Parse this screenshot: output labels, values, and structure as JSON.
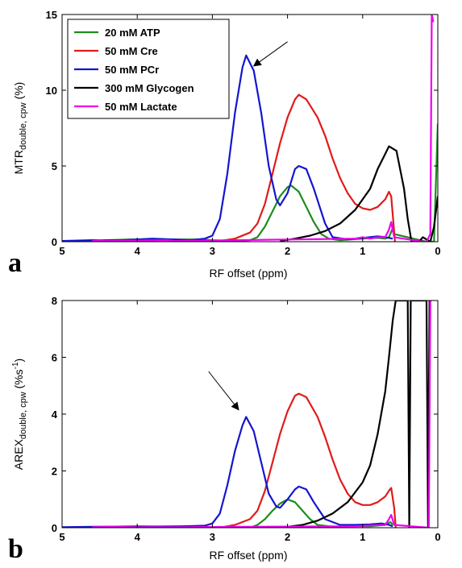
{
  "chart_data": [
    {
      "panel": "a",
      "type": "line",
      "title": "",
      "xlabel": "RF offset (ppm)",
      "ylabel": "MTR",
      "ylabel_sub": "double, cpw",
      "ylabel_unit": "(%)",
      "xlim": [
        5,
        0
      ],
      "ylim": [
        0,
        15
      ],
      "x_reversed": true,
      "xticks": [
        5,
        4,
        3,
        2,
        1,
        0
      ],
      "yticks": [
        0,
        5,
        10,
        15
      ],
      "grid": false,
      "legend_position": "top-left",
      "series": [
        {
          "name": "20 mM ATP",
          "color": "#1e8c1e",
          "points": [
            [
              5,
              0
            ],
            [
              4.7,
              0.05
            ],
            [
              4.4,
              0.1
            ],
            [
              4.1,
              0.15
            ],
            [
              3.8,
              0.15
            ],
            [
              3.5,
              0.15
            ],
            [
              3.2,
              0.15
            ],
            [
              3.0,
              0.1
            ],
            [
              2.8,
              0.05
            ],
            [
              2.5,
              0.1
            ],
            [
              2.4,
              0.3
            ],
            [
              2.3,
              1.0
            ],
            [
              2.2,
              2.0
            ],
            [
              2.1,
              3.0
            ],
            [
              2.0,
              3.6
            ],
            [
              1.95,
              3.7
            ],
            [
              1.85,
              3.3
            ],
            [
              1.75,
              2.3
            ],
            [
              1.65,
              1.3
            ],
            [
              1.55,
              0.5
            ],
            [
              1.45,
              0.2
            ],
            [
              1.3,
              0.1
            ],
            [
              1.0,
              0.2
            ],
            [
              0.8,
              0.25
            ],
            [
              0.7,
              0.2
            ],
            [
              0.65,
              0.3
            ],
            [
              0.6,
              0.9
            ],
            [
              0.58,
              0.5
            ],
            [
              0.15,
              0
            ],
            [
              0.05,
              0
            ],
            [
              0.0,
              7.8
            ]
          ]
        },
        {
          "name": "50 mM Cre",
          "color": "#e01b1b",
          "points": [
            [
              3.2,
              0
            ],
            [
              2.9,
              0.05
            ],
            [
              2.7,
              0.2
            ],
            [
              2.5,
              0.6
            ],
            [
              2.4,
              1.2
            ],
            [
              2.3,
              2.5
            ],
            [
              2.2,
              4.5
            ],
            [
              2.1,
              6.5
            ],
            [
              2.0,
              8.2
            ],
            [
              1.9,
              9.4
            ],
            [
              1.85,
              9.7
            ],
            [
              1.75,
              9.4
            ],
            [
              1.6,
              8.2
            ],
            [
              1.5,
              7.0
            ],
            [
              1.4,
              5.5
            ],
            [
              1.3,
              4.2
            ],
            [
              1.2,
              3.2
            ],
            [
              1.1,
              2.5
            ],
            [
              1.0,
              2.2
            ],
            [
              0.9,
              2.1
            ],
            [
              0.8,
              2.3
            ],
            [
              0.7,
              2.8
            ],
            [
              0.65,
              3.3
            ],
            [
              0.62,
              3.0
            ],
            [
              0.57,
              0
            ]
          ]
        },
        {
          "name": "50 mM PCr",
          "color": "#1515cf",
          "points": [
            [
              5,
              0.05
            ],
            [
              4.6,
              0.1
            ],
            [
              4.2,
              0.1
            ],
            [
              3.8,
              0.2
            ],
            [
              3.5,
              0.15
            ],
            [
              3.3,
              0.1
            ],
            [
              3.1,
              0.2
            ],
            [
              3.0,
              0.4
            ],
            [
              2.9,
              1.5
            ],
            [
              2.8,
              4.5
            ],
            [
              2.7,
              8.5
            ],
            [
              2.6,
              11.5
            ],
            [
              2.55,
              12.3
            ],
            [
              2.45,
              11.3
            ],
            [
              2.35,
              8.5
            ],
            [
              2.25,
              5.0
            ],
            [
              2.15,
              2.8
            ],
            [
              2.1,
              2.4
            ],
            [
              2.0,
              3.2
            ],
            [
              1.9,
              4.8
            ],
            [
              1.85,
              5.0
            ],
            [
              1.75,
              4.8
            ],
            [
              1.65,
              3.5
            ],
            [
              1.5,
              1.2
            ],
            [
              1.4,
              0.3
            ],
            [
              1.2,
              0.15
            ],
            [
              1.0,
              0.25
            ],
            [
              0.8,
              0.35
            ],
            [
              0.7,
              0.3
            ],
            [
              0.6,
              0.2
            ]
          ]
        },
        {
          "name": "300 mM Glycogen",
          "color": "#000000",
          "points": [
            [
              2.1,
              0.05
            ],
            [
              1.9,
              0.2
            ],
            [
              1.7,
              0.4
            ],
            [
              1.5,
              0.7
            ],
            [
              1.3,
              1.2
            ],
            [
              1.1,
              2.1
            ],
            [
              0.9,
              3.5
            ],
            [
              0.8,
              4.8
            ],
            [
              0.7,
              5.8
            ],
            [
              0.65,
              6.3
            ],
            [
              0.55,
              6.0
            ],
            [
              0.45,
              3.5
            ],
            [
              0.4,
              1.5
            ],
            [
              0.35,
              0
            ],
            [
              0.32,
              0
            ],
            [
              0.25,
              0
            ],
            [
              0.2,
              0.3
            ],
            [
              0.1,
              0
            ],
            [
              0.05,
              1.0
            ],
            [
              0.0,
              3.0
            ]
          ]
        },
        {
          "name": "50 mM Lactate",
          "color": "#ee00ee",
          "points": [
            [
              4.6,
              0.05
            ],
            [
              4.5,
              0.1
            ],
            [
              4.4,
              0.05
            ],
            [
              3.6,
              0.1
            ],
            [
              3.5,
              0.05
            ],
            [
              1.1,
              0.2
            ],
            [
              1.0,
              0.3
            ],
            [
              0.9,
              0.2
            ],
            [
              0.8,
              0.3
            ],
            [
              0.7,
              0.3
            ],
            [
              0.65,
              0.8
            ],
            [
              0.62,
              1.3
            ],
            [
              0.58,
              0.3
            ],
            [
              0.2,
              0
            ],
            [
              0.15,
              0
            ],
            [
              0.1,
              0.5
            ],
            [
              0.08,
              15.0
            ],
            [
              0.06,
              14.5
            ]
          ]
        }
      ],
      "annotations": [
        {
          "type": "arrow",
          "from": [
            2.0,
            13.2
          ],
          "to": [
            2.45,
            11.6
          ]
        }
      ]
    },
    {
      "panel": "b",
      "type": "line",
      "title": "",
      "xlabel": "RF offset (ppm)",
      "ylabel": "AREX",
      "ylabel_sub": "double, cpw",
      "ylabel_unit": "(%s",
      "ylabel_unit_sup": "-1",
      "ylabel_unit_end": ")",
      "xlim": [
        5,
        0
      ],
      "ylim": [
        0,
        8
      ],
      "x_reversed": true,
      "xticks": [
        5,
        4,
        3,
        2,
        1,
        0
      ],
      "yticks": [
        0,
        2,
        4,
        6,
        8
      ],
      "grid": false,
      "series": [
        {
          "name": "20 mM ATP",
          "color": "#1e8c1e",
          "points": [
            [
              5,
              0
            ],
            [
              4.5,
              0.03
            ],
            [
              4.0,
              0.05
            ],
            [
              3.5,
              0.03
            ],
            [
              3.0,
              0
            ],
            [
              2.5,
              0
            ],
            [
              2.4,
              0.1
            ],
            [
              2.3,
              0.3
            ],
            [
              2.2,
              0.6
            ],
            [
              2.1,
              0.85
            ],
            [
              2.0,
              1.0
            ],
            [
              1.9,
              0.9
            ],
            [
              1.8,
              0.6
            ],
            [
              1.7,
              0.3
            ],
            [
              1.6,
              0.1
            ],
            [
              1.4,
              0.03
            ],
            [
              1.2,
              0.05
            ],
            [
              0.9,
              0.05
            ],
            [
              0.7,
              0.1
            ],
            [
              0.63,
              0.2
            ],
            [
              0.6,
              0.1
            ]
          ]
        },
        {
          "name": "50 mM Cre",
          "color": "#e01b1b",
          "points": [
            [
              3.2,
              0
            ],
            [
              2.9,
              0
            ],
            [
              2.7,
              0.1
            ],
            [
              2.5,
              0.3
            ],
            [
              2.4,
              0.6
            ],
            [
              2.3,
              1.3
            ],
            [
              2.2,
              2.3
            ],
            [
              2.1,
              3.3
            ],
            [
              2.0,
              4.1
            ],
            [
              1.9,
              4.65
            ],
            [
              1.85,
              4.72
            ],
            [
              1.75,
              4.6
            ],
            [
              1.6,
              3.9
            ],
            [
              1.5,
              3.2
            ],
            [
              1.4,
              2.4
            ],
            [
              1.3,
              1.7
            ],
            [
              1.2,
              1.2
            ],
            [
              1.1,
              0.9
            ],
            [
              1.0,
              0.8
            ],
            [
              0.9,
              0.8
            ],
            [
              0.8,
              0.9
            ],
            [
              0.7,
              1.1
            ],
            [
              0.65,
              1.3
            ],
            [
              0.62,
              1.4
            ],
            [
              0.58,
              0.7
            ],
            [
              0.56,
              0
            ]
          ]
        },
        {
          "name": "50 mM PCr",
          "color": "#1515cf",
          "points": [
            [
              5,
              0.02
            ],
            [
              4.6,
              0.03
            ],
            [
              4.2,
              0.03
            ],
            [
              3.8,
              0.04
            ],
            [
              3.4,
              0.05
            ],
            [
              3.1,
              0.07
            ],
            [
              3.0,
              0.15
            ],
            [
              2.9,
              0.5
            ],
            [
              2.8,
              1.5
            ],
            [
              2.7,
              2.7
            ],
            [
              2.6,
              3.6
            ],
            [
              2.55,
              3.9
            ],
            [
              2.45,
              3.4
            ],
            [
              2.35,
              2.3
            ],
            [
              2.25,
              1.2
            ],
            [
              2.15,
              0.75
            ],
            [
              2.1,
              0.7
            ],
            [
              2.0,
              1.0
            ],
            [
              1.9,
              1.35
            ],
            [
              1.85,
              1.45
            ],
            [
              1.75,
              1.35
            ],
            [
              1.65,
              0.9
            ],
            [
              1.5,
              0.3
            ],
            [
              1.3,
              0.1
            ],
            [
              1.1,
              0.1
            ],
            [
              0.9,
              0.12
            ],
            [
              0.75,
              0.15
            ],
            [
              0.65,
              0.1
            ],
            [
              0.6,
              0.05
            ]
          ]
        },
        {
          "name": "300 mM Glycogen",
          "color": "#000000",
          "points": [
            [
              2.2,
              0
            ],
            [
              2.0,
              0.03
            ],
            [
              1.8,
              0.1
            ],
            [
              1.6,
              0.25
            ],
            [
              1.4,
              0.5
            ],
            [
              1.2,
              0.9
            ],
            [
              1.0,
              1.6
            ],
            [
              0.9,
              2.2
            ],
            [
              0.8,
              3.3
            ],
            [
              0.7,
              4.8
            ],
            [
              0.65,
              6.0
            ],
            [
              0.6,
              7.3
            ],
            [
              0.56,
              8.0
            ],
            [
              0.4,
              8.0
            ],
            [
              0.38,
              0
            ],
            [
              0.36,
              8.0
            ],
            [
              0.15,
              8.0
            ],
            [
              0.13,
              0
            ],
            [
              0.11,
              8.0
            ]
          ]
        },
        {
          "name": "50 mM Lactate",
          "color": "#ee00ee",
          "points": [
            [
              4.6,
              0.02
            ],
            [
              4.3,
              0.03
            ],
            [
              4.0,
              0.02
            ],
            [
              3.7,
              0.02
            ],
            [
              3.4,
              0.02
            ],
            [
              1.1,
              0.05
            ],
            [
              0.9,
              0.08
            ],
            [
              0.7,
              0.1
            ],
            [
              0.65,
              0.3
            ],
            [
              0.62,
              0.45
            ],
            [
              0.58,
              0.1
            ],
            [
              0.12,
              0
            ],
            [
              0.1,
              8.0
            ],
            [
              0.08,
              8.0
            ]
          ]
        }
      ],
      "annotations": [
        {
          "type": "arrow",
          "from": [
            3.05,
            5.5
          ],
          "to": [
            2.65,
            4.15
          ]
        }
      ]
    }
  ],
  "panels": [
    {
      "letter": "a",
      "x_axis_label": "RF offset (ppm)"
    },
    {
      "letter": "b",
      "x_axis_label": "RF offset (ppm)"
    }
  ],
  "legend_entries": [
    "20 mM ATP",
    "50 mM Cre",
    "50 mM PCr",
    "300 mM Glycogen",
    "50 mM Lactate"
  ]
}
